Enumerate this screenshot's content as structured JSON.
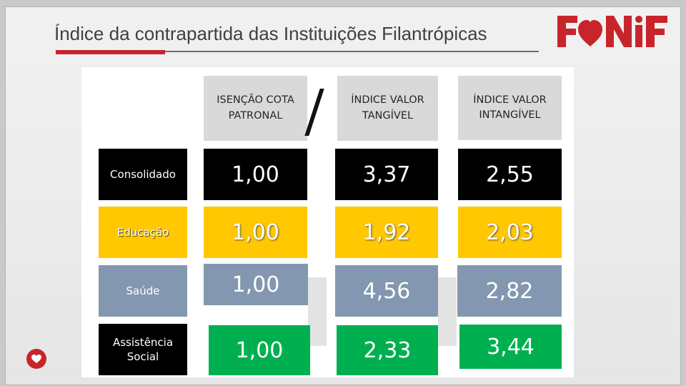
{
  "header": {
    "title": "Índice da contrapartida das Instituições Filantrópicas",
    "logo_text": "FONIF",
    "logo_color": "#c8242b"
  },
  "table": {
    "columns": [
      "ISENÇÃO COTA\nPATRONAL",
      "ÍNDICE VALOR\nTANGÍVEL",
      "ÍNDICE VALOR\nINTANGÍVEL"
    ],
    "rows": [
      {
        "label": "Consolidado",
        "values": [
          "1,00",
          "3,37",
          "2,55"
        ],
        "color": "#000000",
        "text_color": "#ffffff",
        "label_text_color": "#ffffff"
      },
      {
        "label": "Educação",
        "values": [
          "1,00",
          "1,92",
          "2,03"
        ],
        "color": "#ffc800",
        "text_color": "#ffffff",
        "label_text_color": "#ffffff"
      },
      {
        "label": "Saúde",
        "values": [
          "1,00",
          "4,56",
          "2,82"
        ],
        "color": "#8497b0",
        "text_color": "#ffffff",
        "label_text_color": "#ffffff"
      },
      {
        "label": "Assistência\nSocial",
        "values": [
          "1,00",
          "2,33",
          "3,44"
        ],
        "color": "#00b050",
        "text_color": "#ffffff",
        "label_text_color": "#ffffff"
      }
    ]
  },
  "icons": {
    "corner_badge": "heart-icon"
  }
}
